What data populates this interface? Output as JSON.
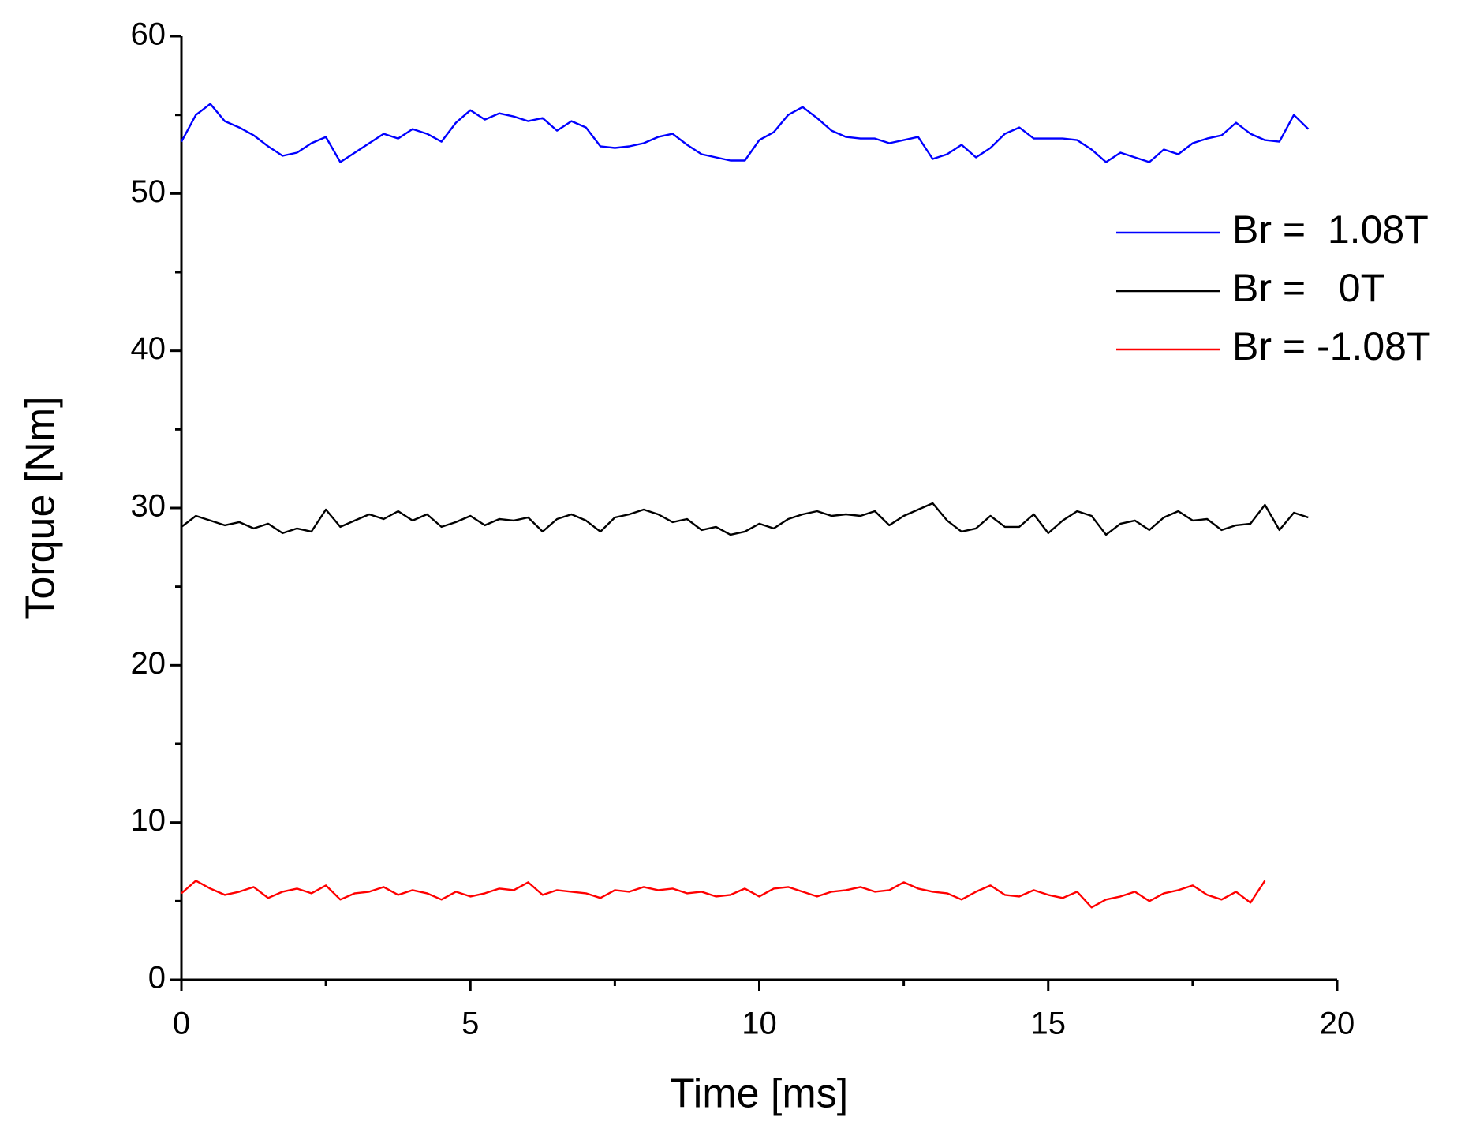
{
  "chart_data": {
    "type": "line",
    "xlabel": "Time [ms]",
    "ylabel": "Torque [Nm]",
    "x": [
      0,
      0.25,
      0.5,
      0.75,
      1,
      1.25,
      1.5,
      1.75,
      2,
      2.25,
      2.5,
      2.75,
      3,
      3.25,
      3.5,
      3.75,
      4,
      4.25,
      4.5,
      4.75,
      5,
      5.25,
      5.5,
      5.75,
      6,
      6.25,
      6.5,
      6.75,
      7,
      7.25,
      7.5,
      7.75,
      8,
      8.25,
      8.5,
      8.75,
      9,
      9.25,
      9.5,
      9.75,
      10,
      10.25,
      10.5,
      10.75,
      11,
      11.25,
      11.5,
      11.75,
      12,
      12.25,
      12.5,
      12.75,
      13,
      13.25,
      13.5,
      13.75,
      14,
      14.25,
      14.5,
      14.75,
      15,
      15.25,
      15.5,
      15.75,
      16,
      16.25,
      16.5,
      16.75,
      17,
      17.25,
      17.5,
      17.75,
      18,
      18.25,
      18.5,
      18.75,
      19,
      19.25,
      19.5
    ],
    "series": [
      {
        "name": "Br =  1.08T",
        "color": "#0000ff",
        "values": [
          53.3,
          55,
          55.7,
          54.6,
          54.2,
          53.7,
          53,
          52.4,
          52.6,
          53.2,
          53.6,
          52,
          52.6,
          53.2,
          53.8,
          53.5,
          54.1,
          53.8,
          53.3,
          54.5,
          55.3,
          54.7,
          55.1,
          54.9,
          54.6,
          54.8,
          54,
          54.6,
          54.2,
          53,
          52.9,
          53,
          53.2,
          53.6,
          53.8,
          53.1,
          52.5,
          52.3,
          52.1,
          52.1,
          53.4,
          53.9,
          55,
          55.5,
          54.8,
          54,
          53.6,
          53.5,
          53.5,
          53.2,
          53.4,
          53.6,
          52.2,
          52.5,
          53.1,
          52.3,
          52.9,
          53.8,
          54.2,
          53.5,
          53.5,
          53.5,
          53.4,
          52.8,
          52,
          52.6,
          52.3,
          52,
          52.8,
          52.5,
          53.2,
          53.5,
          53.7,
          54.5,
          53.8,
          53.4,
          53.3,
          55,
          54.1
        ]
      },
      {
        "name": "Br =   0T",
        "color": "#000000",
        "values": [
          28.8,
          29.5,
          29.2,
          28.9,
          29.1,
          28.7,
          29,
          28.4,
          28.7,
          28.5,
          29.9,
          28.8,
          29.2,
          29.6,
          29.3,
          29.8,
          29.2,
          29.6,
          28.8,
          29.1,
          29.5,
          28.9,
          29.3,
          29.2,
          29.4,
          28.5,
          29.3,
          29.6,
          29.2,
          28.5,
          29.4,
          29.6,
          29.9,
          29.6,
          29.1,
          29.3,
          28.6,
          28.8,
          28.3,
          28.5,
          29,
          28.7,
          29.3,
          29.6,
          29.8,
          29.5,
          29.6,
          29.5,
          29.8,
          28.9,
          29.5,
          29.9,
          30.3,
          29.2,
          28.5,
          28.7,
          29.5,
          28.8,
          28.8,
          29.6,
          28.4,
          29.2,
          29.8,
          29.5,
          28.3,
          29,
          29.2,
          28.6,
          29.4,
          29.8,
          29.2,
          29.3,
          28.6,
          28.9,
          29,
          30.2,
          28.6,
          29.7,
          29.4
        ]
      },
      {
        "name": "Br = -1.08T",
        "color": "#ff0000",
        "values": [
          5.5,
          6.3,
          5.8,
          5.4,
          5.6,
          5.9,
          5.2,
          5.6,
          5.8,
          5.5,
          6,
          5.1,
          5.5,
          5.6,
          5.9,
          5.4,
          5.7,
          5.5,
          5.1,
          5.6,
          5.3,
          5.5,
          5.8,
          5.7,
          6.2,
          5.4,
          5.7,
          5.6,
          5.5,
          5.2,
          5.7,
          5.6,
          5.9,
          5.7,
          5.8,
          5.5,
          5.6,
          5.3,
          5.4,
          5.8,
          5.3,
          5.8,
          5.9,
          5.6,
          5.3,
          5.6,
          5.7,
          5.9,
          5.6,
          5.7,
          6.2,
          5.8,
          5.6,
          5.5,
          5.1,
          5.6,
          6,
          5.4,
          5.3,
          5.7,
          5.4,
          5.2,
          5.6,
          4.6,
          5.1,
          5.3,
          5.6,
          5,
          5.5,
          5.7,
          6,
          5.4,
          5.1,
          5.6,
          4.9,
          6.3,
          null,
          null,
          null
        ]
      }
    ],
    "xlim": [
      0,
      20
    ],
    "xticks": [
      0,
      5,
      10,
      15,
      20
    ],
    "xminorticks": [
      2.5,
      7.5,
      12.5,
      17.5
    ],
    "ylim": [
      0,
      60
    ],
    "yticks": [
      0,
      10,
      20,
      30,
      40,
      50,
      60
    ],
    "yminorticks": [
      5,
      15,
      25,
      35,
      45,
      55
    ],
    "grid": false,
    "legend": "upper right"
  }
}
